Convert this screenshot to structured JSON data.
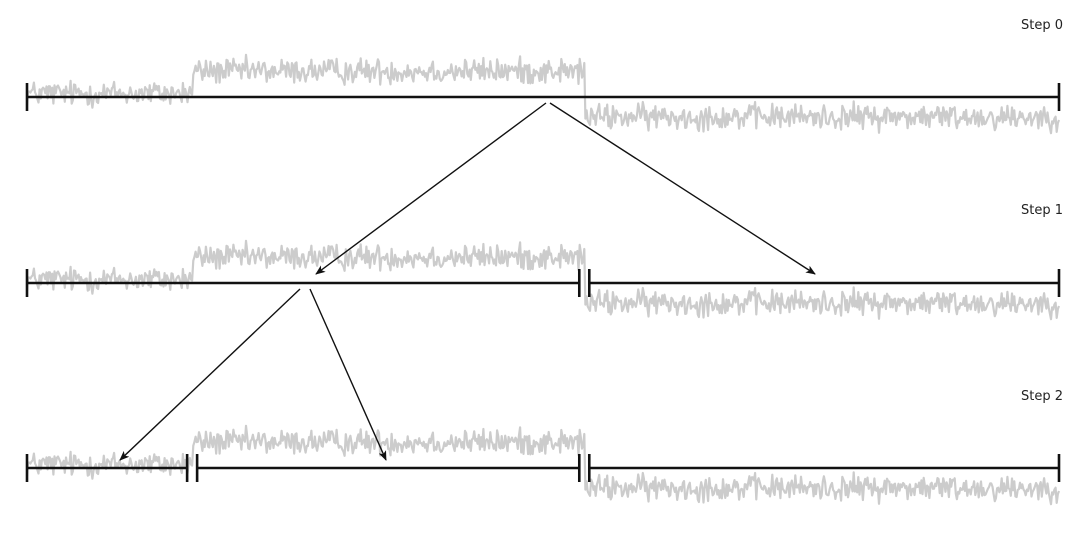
{
  "steps": [
    {
      "label": "Step 0",
      "segments": [
        [
          0,
          1
        ]
      ],
      "splits": [
        [
          0,
          1
        ]
      ]
    },
    {
      "label": "Step 1",
      "segments": [
        [
          0,
          0.54
        ],
        [
          0.54,
          1
        ]
      ],
      "splits": [
        [
          0,
          0
        ],
        [
          0,
          1
        ]
      ]
    },
    {
      "label": "Step 2",
      "segments": [
        [
          0,
          0.16
        ],
        [
          0.16,
          0.54
        ],
        [
          0.54,
          1
        ]
      ],
      "splits": [
        [
          0,
          0
        ],
        [
          0,
          1
        ]
      ]
    }
  ],
  "signal": {
    "regimes": [
      {
        "from": 0,
        "to": 0.16,
        "level": 0.1
      },
      {
        "from": 0.16,
        "to": 0.54,
        "level": 0.72
      },
      {
        "from": 0.54,
        "to": 1,
        "level": -0.55
      }
    ],
    "color": "#cccccc"
  },
  "colors": {
    "line": "#111111",
    "signal": "#cccccc",
    "text": "#222222"
  }
}
